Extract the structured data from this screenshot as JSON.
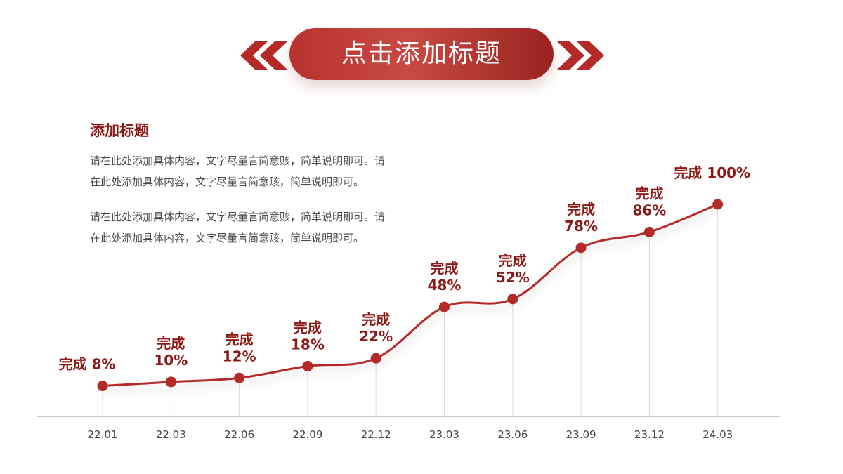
{
  "header": {
    "title": "点击添加标题"
  },
  "content": {
    "subtitle": "添加标题",
    "paragraphs": [
      "请在此处添加具体内容，文字尽量言简意赅，简单说明即可。请在此处添加具体内容，文字尽量言简意赅，简单说明即可。",
      "请在此处添加具体内容，文字尽量言简意赅，简单说明即可。请在此处添加具体内容，文字尽量言简意赅，简单说明即可。"
    ]
  },
  "colors": {
    "accent": "#b32a26",
    "label": "#8b1a16",
    "axis": "#bbbbbb",
    "guide": "#dddddd"
  },
  "chart_data": {
    "type": "line",
    "title": "",
    "xlabel": "",
    "ylabel": "",
    "ylim": [
      0,
      100
    ],
    "grid": false,
    "categories": [
      "22.01",
      "22.03",
      "22.06",
      "22.09",
      "22.12",
      "23.03",
      "23.06",
      "23.09",
      "23.12",
      "24.03"
    ],
    "series": [
      {
        "values": [
          8,
          10,
          12,
          18,
          22,
          48,
          52,
          78,
          86,
          100
        ]
      }
    ],
    "point_labels": [
      "完成 8%",
      "完成\n10%",
      "完成\n12%",
      "完成\n18%",
      "完成\n22%",
      "完成\n48%",
      "完成\n52%",
      "完成\n78%",
      "完成\n86%",
      "完成 100%"
    ]
  }
}
